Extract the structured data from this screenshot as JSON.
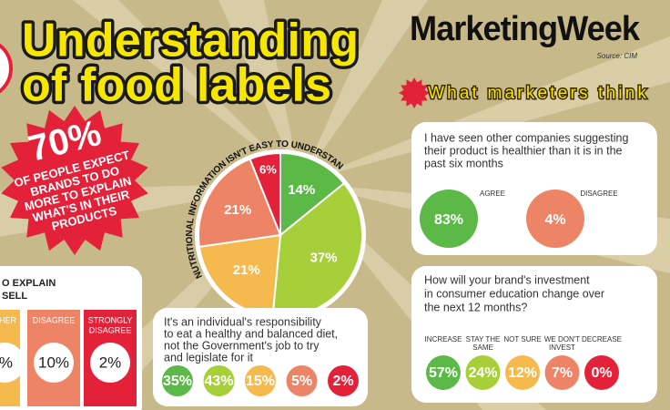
{
  "title": {
    "line1": "Understanding",
    "line2": "of food labels"
  },
  "brand": {
    "logo": "MarketingWeek",
    "source": "Source: CIM"
  },
  "callout": {
    "figure": "70%",
    "text": [
      "OF PEOPLE EXPECT",
      "BRANDS TO DO",
      "MORE TO EXPLAIN",
      "WHAT'S IN THEIR",
      "PRODUCTS"
    ]
  },
  "pie": {
    "caption": "NUTRITIONAL INFORMATION ISN'T EASY TO UNDERSTAND",
    "values": [
      14,
      37,
      21,
      21,
      6
    ],
    "value_labels": [
      "14%",
      "37%",
      "21%",
      "21%",
      "6%"
    ],
    "colors": [
      "#5cb947",
      "#a6cf3a",
      "#f5b94e",
      "#ec8465",
      "#e3223a"
    ]
  },
  "section": "What marketers think",
  "left_panel": {
    "title": [
      "O EXPLAIN",
      "SELL"
    ],
    "columns": [
      {
        "label": [
          "HER"
        ],
        "value": "%"
      },
      {
        "label": [
          "DISAGREE"
        ],
        "value": "10%"
      },
      {
        "label": [
          "STRONGLY",
          "DISAGREE"
        ],
        "value": "2%"
      }
    ]
  },
  "middle_panel": {
    "question": [
      "It's an individual's responsibility",
      "to eat a healthy and balanced diet,",
      "not the Government's job to try",
      "and legislate for it"
    ],
    "answers": [
      "35%",
      "43%",
      "15%",
      "5%",
      "2%"
    ]
  },
  "right_top_panel": {
    "question": [
      "I have seen other companies suggesting",
      "their product is healthier than it is in the",
      "past six months"
    ],
    "answers": [
      {
        "label": "AGREE",
        "value": "83%"
      },
      {
        "label": "DISAGREE",
        "value": "4%"
      }
    ]
  },
  "right_bottom_panel": {
    "question": [
      "How will your brand's investment",
      "in consumer education change over",
      "the next 12 months?"
    ],
    "answers": [
      {
        "label": [
          "INCREASE"
        ],
        "value": "57%"
      },
      {
        "label": [
          "STAY THE",
          "SAME"
        ],
        "value": "24%"
      },
      {
        "label": [
          "NOT SURE"
        ],
        "value": "12%"
      },
      {
        "label": [
          "WE DON'T",
          "INVEST"
        ],
        "value": "7%"
      },
      {
        "label": [
          "DECREASE"
        ],
        "value": "0%"
      }
    ]
  }
}
